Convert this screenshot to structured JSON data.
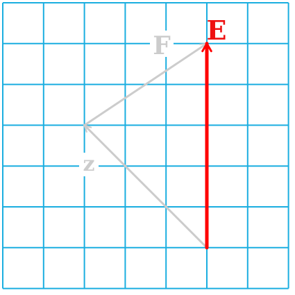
{
  "grid": {
    "columns": 7,
    "rows": 7,
    "line_color": "#1aaee0",
    "background": "#ffffff"
  },
  "vectors": [
    {
      "id": "z",
      "label": "z",
      "color": "#cccccc",
      "label_color": "#cccccc",
      "from": [
        5,
        1
      ],
      "to": [
        2,
        4
      ],
      "emphasis": false
    },
    {
      "id": "F",
      "label": "F",
      "color": "#cccccc",
      "label_color": "#cccccc",
      "from": [
        2,
        4
      ],
      "to": [
        5,
        6
      ],
      "emphasis": false
    },
    {
      "id": "E",
      "label": "E",
      "color": "#ff0000",
      "label_color": "#ee1111",
      "from": [
        5,
        1
      ],
      "to": [
        5,
        6
      ],
      "emphasis": true
    }
  ]
}
